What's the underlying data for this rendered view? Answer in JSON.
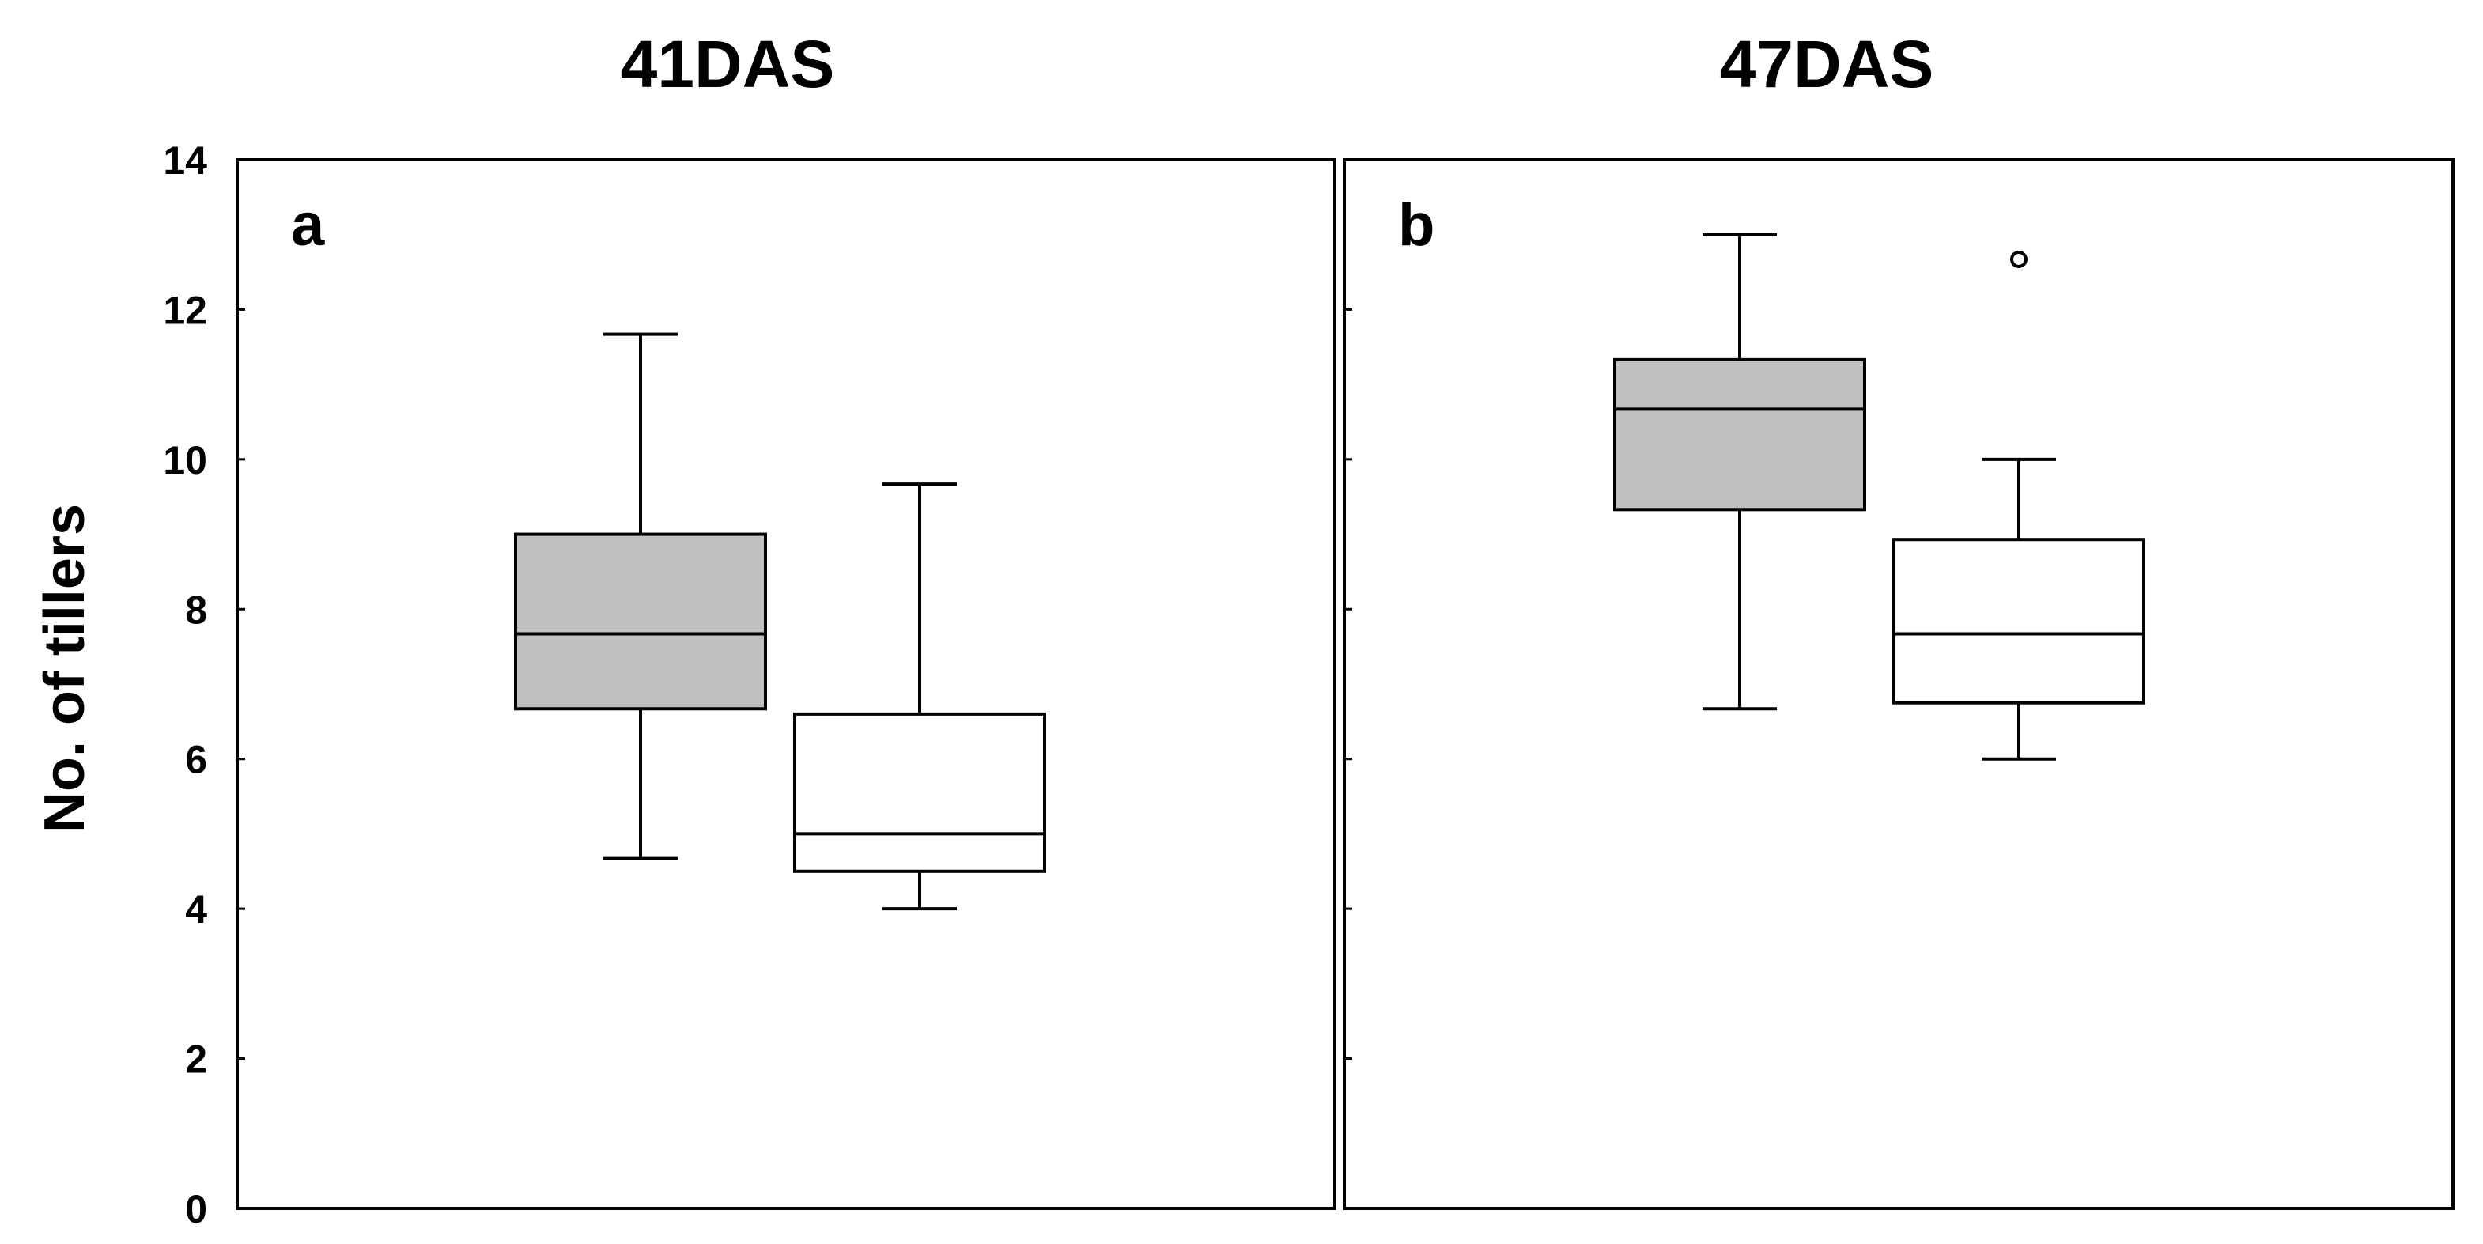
{
  "chart_data": [
    {
      "type": "box",
      "title": "41DAS",
      "panel_label": "a",
      "ylabel": "No. of tillers",
      "ylim": [
        0,
        14
      ],
      "yticks": [
        0,
        2,
        4,
        6,
        8,
        10,
        12,
        14
      ],
      "box_colors": [
        "#c0c0c0",
        "#ffffff"
      ],
      "boxes": [
        {
          "whisker_low": 4.67,
          "q1": 6.67,
          "median": 7.67,
          "q3": 9.0,
          "whisker_high": 11.67,
          "outliers": []
        },
        {
          "whisker_low": 4.0,
          "q1": 4.5,
          "median": 5.0,
          "q3": 6.6,
          "whisker_high": 9.67,
          "outliers": []
        }
      ]
    },
    {
      "type": "box",
      "title": "47DAS",
      "panel_label": "b",
      "ylim": [
        0,
        14
      ],
      "yticks": [
        0,
        2,
        4,
        6,
        8,
        10,
        12,
        14
      ],
      "box_colors": [
        "#c0c0c0",
        "#ffffff"
      ],
      "boxes": [
        {
          "whisker_low": 6.67,
          "q1": 9.33,
          "median": 10.67,
          "q3": 11.33,
          "whisker_high": 13.0,
          "outliers": []
        },
        {
          "whisker_low": 6.0,
          "q1": 6.75,
          "median": 7.67,
          "q3": 8.93,
          "whisker_high": 10.0,
          "outliers": [
            12.67
          ]
        }
      ]
    }
  ]
}
